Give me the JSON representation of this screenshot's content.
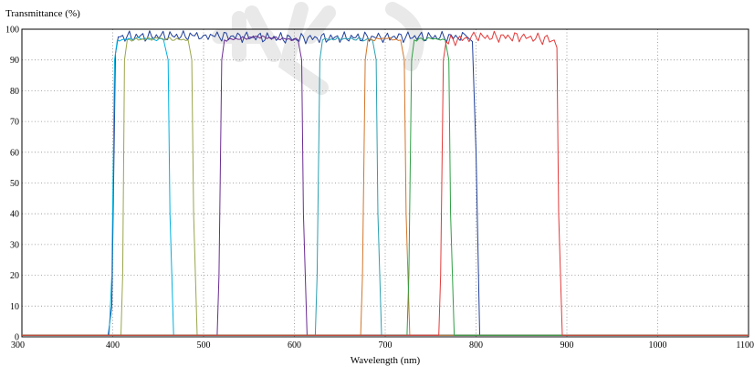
{
  "chart_data": {
    "type": "line",
    "title": "",
    "ylabel": "Transmittance (%)",
    "xlabel": "Wavelength (nm)",
    "xlim": [
      300,
      1100
    ],
    "ylim": [
      0,
      100
    ],
    "x_ticks": [
      300,
      400,
      500,
      600,
      700,
      800,
      900,
      1000,
      1100
    ],
    "y_ticks": [
      0,
      10,
      20,
      30,
      40,
      50,
      60,
      70,
      80,
      90,
      100
    ],
    "grid": true,
    "legend": "none",
    "series": [
      {
        "color": "#1f3f9a",
        "x": [
          300,
          395,
          399,
          403,
          406,
          500,
          600,
          700,
          790,
          796,
          800,
          804,
          1100
        ],
        "y": [
          0.5,
          0.5,
          10,
          92,
          97.5,
          98,
          97,
          97.5,
          97.5,
          96,
          60,
          0.5,
          0.5
        ]
      },
      {
        "color": "#00b0e0",
        "x": [
          300,
          396,
          399,
          402,
          405,
          430,
          456,
          461,
          463,
          467,
          1100
        ],
        "y": [
          0.5,
          0.5,
          20,
          90,
          96.5,
          97,
          96.5,
          90,
          40,
          0.5,
          0.5
        ]
      },
      {
        "color": "#9aa54a",
        "x": [
          300,
          409,
          411,
          413,
          416,
          450,
          483,
          487,
          489,
          493,
          1100
        ],
        "y": [
          0.5,
          0.5,
          20,
          90,
          96.5,
          97,
          96.5,
          90,
          40,
          0.5,
          0.5
        ]
      },
      {
        "color": "#6a2c91",
        "x": [
          300,
          515,
          517,
          520,
          523,
          560,
          604,
          608,
          610,
          614,
          1100
        ],
        "y": [
          0.5,
          0.5,
          20,
          90,
          96.5,
          97.5,
          96.5,
          90,
          40,
          0.5,
          0.5
        ]
      },
      {
        "color": "#2a9fb0",
        "x": [
          300,
          623,
          625,
          628,
          631,
          655,
          686,
          690,
          692,
          696,
          1100
        ],
        "y": [
          0.5,
          0.5,
          20,
          90,
          96.5,
          97,
          96.5,
          90,
          40,
          0.5,
          0.5
        ]
      },
      {
        "color": "#d2762b",
        "x": [
          300,
          673,
          675,
          678,
          681,
          700,
          717,
          721,
          723,
          727,
          1100
        ],
        "y": [
          0.5,
          0.5,
          20,
          90,
          96.5,
          97,
          96.5,
          90,
          40,
          0.5,
          0.5
        ]
      },
      {
        "color": "#2ea043",
        "x": [
          300,
          724,
          726,
          729,
          732,
          750,
          766,
          770,
          772,
          776,
          1100
        ],
        "y": [
          0.5,
          0.5,
          20,
          90,
          96.5,
          97,
          96.5,
          90,
          40,
          0.5,
          0.5
        ]
      },
      {
        "color": "#e23a3a",
        "x": [
          300,
          759,
          761,
          764,
          767,
          800,
          850,
          886,
          889,
          891,
          895,
          1100
        ],
        "y": [
          0.5,
          0.5,
          20,
          90,
          96,
          97.5,
          97.5,
          96.5,
          94,
          40,
          0.5,
          0.5
        ]
      }
    ]
  }
}
